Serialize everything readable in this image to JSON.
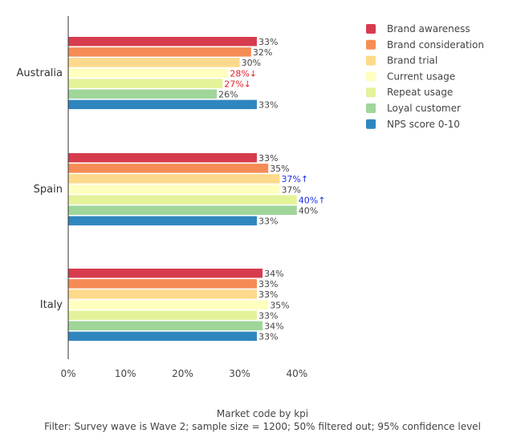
{
  "chart_data": {
    "type": "bar",
    "orientation": "horizontal",
    "categories": [
      "Australia",
      "Spain",
      "Italy"
    ],
    "series": [
      {
        "name": "Brand awareness",
        "color": "#d63c4e",
        "values": [
          33,
          33,
          34
        ],
        "labels": [
          "33%",
          "33%",
          "34%"
        ]
      },
      {
        "name": "Brand consideration",
        "color": "#f58c55",
        "values": [
          32,
          35,
          33
        ],
        "labels": [
          "32%",
          "35%",
          "33%"
        ]
      },
      {
        "name": "Brand trial",
        "color": "#fdd98b",
        "values": [
          30,
          37,
          33
        ],
        "labels": [
          "30%",
          "37%",
          "33%"
        ],
        "significance": [
          "",
          "up",
          ""
        ]
      },
      {
        "name": "Current usage",
        "color": "#ffffc0",
        "values": [
          28,
          37,
          35
        ],
        "labels": [
          "28%",
          "37%",
          "35%"
        ],
        "significance": [
          "down",
          "",
          ""
        ]
      },
      {
        "name": "Repeat usage",
        "color": "#e4f29a",
        "values": [
          27,
          40,
          33
        ],
        "labels": [
          "27%",
          "40%",
          "33%"
        ],
        "significance": [
          "down",
          "up",
          ""
        ]
      },
      {
        "name": "Loyal customer",
        "color": "#a0d69a",
        "values": [
          26,
          40,
          34
        ],
        "labels": [
          "26%",
          "40%",
          "34%"
        ]
      },
      {
        "name": "NPS score 0-10",
        "color": "#2f86bf",
        "values": [
          33,
          33,
          33
        ],
        "labels": [
          "33%",
          "33%",
          "33%"
        ]
      }
    ],
    "xlim": [
      0,
      45
    ],
    "xticks": [
      0,
      10,
      20,
      30,
      40
    ],
    "xtick_labels": [
      "0%",
      "10%",
      "20%",
      "30%",
      "40%"
    ],
    "grid": false,
    "legend_position": "top-right",
    "significance_colors": {
      "up": "#1f2ee0",
      "down": "#e0232c"
    },
    "significance_arrows": {
      "up": "↑",
      "down": "↓"
    },
    "xlabel": "Market code by kpi",
    "filter_note": "Filter: Survey wave is Wave 2; sample size = 1200; 50% filtered out; 95% confidence level"
  }
}
